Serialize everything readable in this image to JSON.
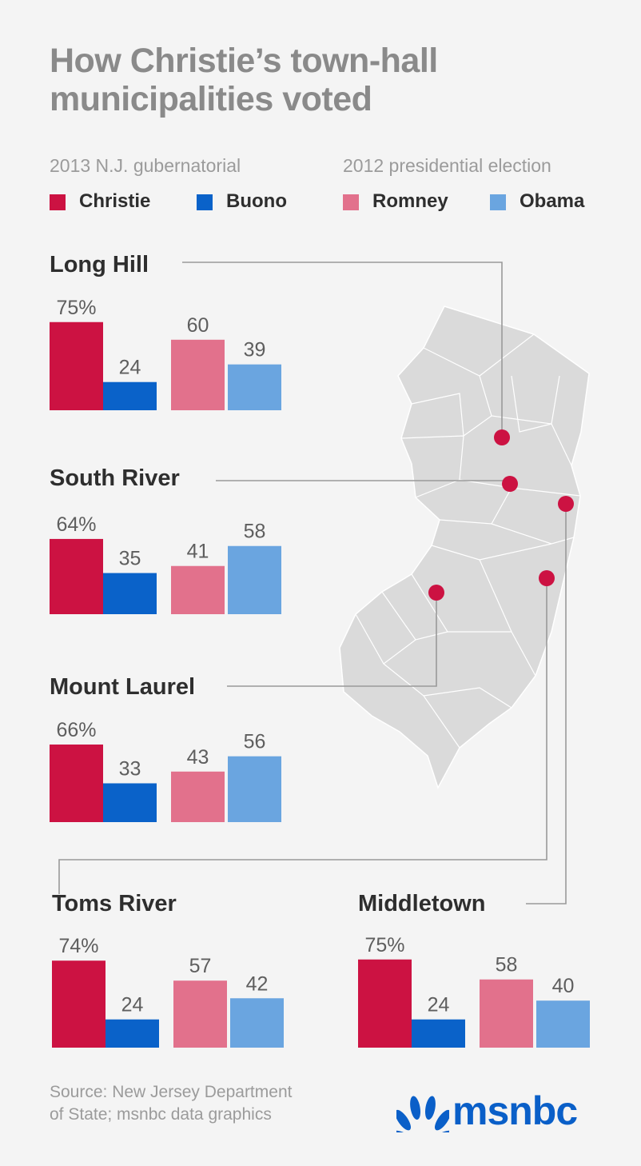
{
  "title": "How Christie’s town-hall municipalities voted",
  "legend": {
    "group_2013": "2013 N.J. gubernatorial",
    "group_2012": "2012 presidential election",
    "items": [
      {
        "label": "Christie",
        "color": "#cc1242"
      },
      {
        "label": "Buono",
        "color": "#0a62c9"
      },
      {
        "label": "Romney",
        "color": "#e2718c"
      },
      {
        "label": "Obama",
        "color": "#6aa5e0"
      }
    ]
  },
  "chart_data": [
    {
      "type": "bar",
      "title": "Long Hill",
      "categories": [
        "Christie",
        "Buono",
        "Romney",
        "Obama"
      ],
      "values": [
        75,
        24,
        60,
        39
      ],
      "labels": [
        "75%",
        "24",
        "60",
        "39"
      ]
    },
    {
      "type": "bar",
      "title": "South River",
      "categories": [
        "Christie",
        "Buono",
        "Romney",
        "Obama"
      ],
      "values": [
        64,
        35,
        41,
        58
      ],
      "labels": [
        "64%",
        "35",
        "41",
        "58"
      ]
    },
    {
      "type": "bar",
      "title": "Mount Laurel",
      "categories": [
        "Christie",
        "Buono",
        "Romney",
        "Obama"
      ],
      "values": [
        66,
        33,
        43,
        56
      ],
      "labels": [
        "66%",
        "33",
        "43",
        "56"
      ]
    },
    {
      "type": "bar",
      "title": "Toms River",
      "categories": [
        "Christie",
        "Buono",
        "Romney",
        "Obama"
      ],
      "values": [
        74,
        24,
        57,
        42
      ],
      "labels": [
        "74%",
        "24",
        "57",
        "42"
      ]
    },
    {
      "type": "bar",
      "title": "Middletown",
      "categories": [
        "Christie",
        "Buono",
        "Romney",
        "Obama"
      ],
      "values": [
        75,
        24,
        58,
        40
      ],
      "labels": [
        "75%",
        "24",
        "58",
        "40"
      ]
    }
  ],
  "map": {
    "icon": "new-jersey-map-icon",
    "fill": "#dadada",
    "marker_color": "#cc1242"
  },
  "source": [
    "Source: New Jersey Department",
    "of State; msnbc data graphics"
  ],
  "logo": {
    "text": "msnbc",
    "icon": "nbc-peacock-icon"
  }
}
